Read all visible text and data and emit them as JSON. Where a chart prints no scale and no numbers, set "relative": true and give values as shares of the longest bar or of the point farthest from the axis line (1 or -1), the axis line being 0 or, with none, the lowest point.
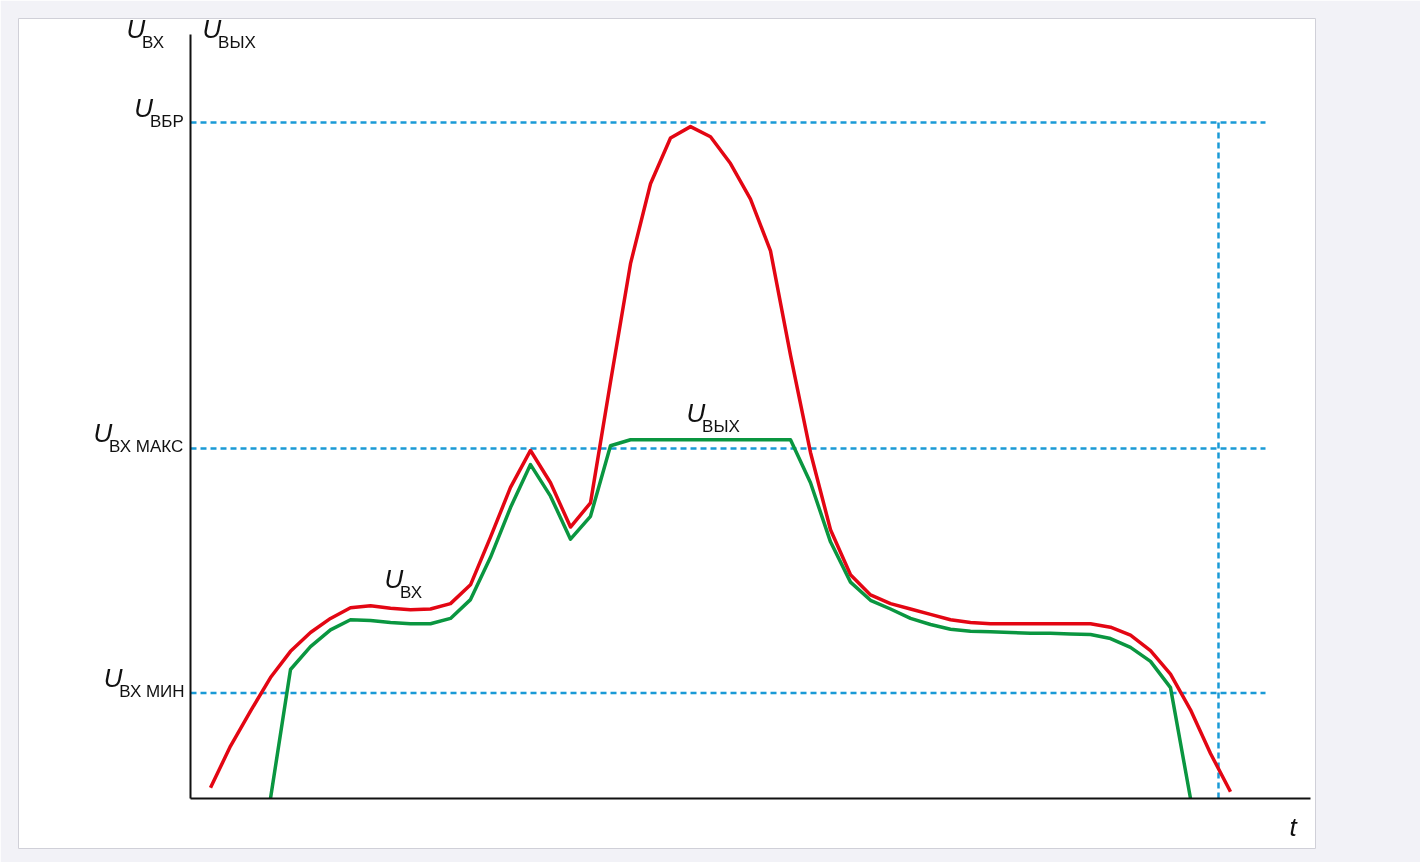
{
  "chart_data": {
    "type": "line",
    "relative": true,
    "xlabel": "t",
    "ylabel": "U$_{ВХ}$ U$_{ВЫХ}$",
    "grid": false,
    "categories": [
      null,
      null,
      null,
      null,
      null,
      null,
      null,
      null,
      null,
      null,
      null,
      null,
      null,
      null,
      null,
      null,
      null,
      null,
      null,
      null,
      null,
      null,
      null,
      null,
      null,
      null,
      null,
      null,
      null,
      null,
      null,
      null,
      null,
      null,
      null,
      null,
      null,
      null,
      null,
      null,
      null,
      null,
      null,
      null,
      null,
      null,
      null,
      null,
      null,
      null,
      null,
      null,
      null,
      null,
      null,
      null,
      null
    ],
    "series": [
      {
        "name": "U$_{ВХ}$",
        "color": "#e30613",
        "values": [
          null,
          0.016,
          0.078,
          0.13,
          0.18,
          0.219,
          0.247,
          0.268,
          0.284,
          0.287,
          0.283,
          0.281,
          0.282,
          0.29,
          0.318,
          0.389,
          0.463,
          0.518,
          0.47,
          0.404,
          0.44,
          0.62,
          0.796,
          0.915,
          0.983,
          1,
          0.985,
          0.945,
          0.892,
          0.815,
          0.66,
          0.515,
          0.4,
          0.333,
          0.303,
          0.29,
          0.282,
          0.274,
          0.266,
          0.262,
          0.26,
          0.26,
          0.26,
          0.26,
          0.26,
          0.26,
          0.255,
          0.243,
          0.22,
          0.185,
          0.132,
          0.067,
          0.01,
          null,
          null,
          null,
          null
        ]
      },
      {
        "name": "U$_{ВЫХ}$",
        "color": "#0a9640",
        "values": [
          null,
          null,
          null,
          null,
          0,
          0.192,
          0.226,
          0.251,
          0.266,
          0.265,
          0.262,
          0.26,
          0.26,
          0.268,
          0.296,
          0.359,
          0.433,
          0.497,
          0.45,
          0.386,
          0.42,
          0.525,
          0.534,
          0.534,
          0.534,
          0.534,
          0.534,
          0.534,
          0.534,
          0.534,
          0.534,
          0.47,
          0.382,
          0.322,
          0.295,
          0.282,
          0.268,
          0.259,
          0.252,
          0.249,
          0.248,
          0.247,
          0.246,
          0.246,
          0.245,
          0.244,
          0.238,
          0.225,
          0.204,
          0.165,
          0,
          null,
          null,
          null,
          null,
          null,
          null
        ]
      }
    ],
    "ref_lines": [
      {
        "axis": "y",
        "value": 1.006,
        "label": "U$_{ВБР}$",
        "color": "#1a9ad6",
        "line_style": "dashed"
      },
      {
        "axis": "y",
        "value": 0.521,
        "label": "U$_{ВХ МАКС}$",
        "color": "#1a9ad6",
        "line_style": "dashed"
      },
      {
        "axis": "y",
        "value": 0.157,
        "label": "U$_{ВХ МИН}$",
        "color": "#1a9ad6",
        "line_style": "dashed"
      }
    ]
  }
}
